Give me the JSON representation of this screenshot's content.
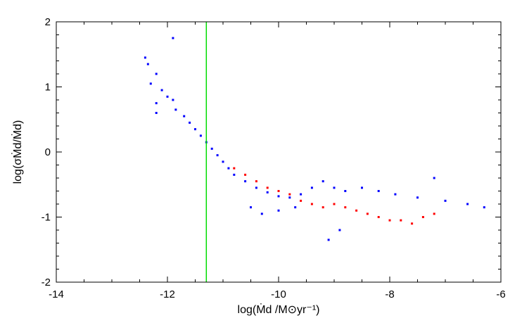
{
  "chart_data": {
    "type": "scatter",
    "title": "",
    "xlabel": "log(Ṁd /M⊙yr⁻¹)",
    "ylabel": "log(σṀd/Ṁd)",
    "xlim": [
      -14,
      -6
    ],
    "ylim": [
      -2,
      2
    ],
    "xticks": [
      "-14",
      "-12",
      "-10",
      "-8",
      "-6"
    ],
    "yticks": [
      "-2",
      "-1",
      "0",
      "1",
      "2"
    ],
    "grid": false,
    "legend": "none",
    "vertical_line": {
      "x": -11.3,
      "color": "#00dd00"
    },
    "series": [
      {
        "color": "#0000ff",
        "points": [
          [
            -12.4,
            1.45
          ],
          [
            -12.35,
            1.35
          ],
          [
            -12.2,
            1.2
          ],
          [
            -12.3,
            1.05
          ],
          [
            -12.1,
            0.95
          ],
          [
            -12.0,
            0.85
          ],
          [
            -11.9,
            0.8
          ],
          [
            -12.2,
            0.75
          ],
          [
            -11.85,
            0.65
          ],
          [
            -11.7,
            0.55
          ],
          [
            -11.6,
            0.45
          ],
          [
            -11.5,
            0.35
          ],
          [
            -11.4,
            0.25
          ],
          [
            -11.3,
            0.15
          ],
          [
            -11.2,
            0.05
          ],
          [
            -11.1,
            -0.05
          ],
          [
            -11.0,
            -0.15
          ],
          [
            -10.9,
            -0.25
          ],
          [
            -10.8,
            -0.35
          ],
          [
            -10.6,
            -0.45
          ],
          [
            -10.4,
            -0.55
          ],
          [
            -10.2,
            -0.62
          ],
          [
            -10.0,
            -0.68
          ],
          [
            -9.8,
            -0.7
          ],
          [
            -9.6,
            -0.65
          ],
          [
            -9.4,
            -0.55
          ],
          [
            -9.2,
            -0.45
          ],
          [
            -9.0,
            -0.55
          ],
          [
            -8.8,
            -0.6
          ],
          [
            -8.5,
            -0.55
          ],
          [
            -8.2,
            -0.6
          ],
          [
            -7.9,
            -0.65
          ],
          [
            -7.5,
            -0.7
          ],
          [
            -7.0,
            -0.75
          ],
          [
            -6.6,
            -0.8
          ],
          [
            -6.3,
            -0.85
          ],
          [
            -10.5,
            -0.85
          ],
          [
            -10.3,
            -0.95
          ],
          [
            -10.0,
            -0.9
          ],
          [
            -9.7,
            -0.85
          ],
          [
            -11.9,
            1.75
          ],
          [
            -12.2,
            0.6
          ],
          [
            -9.1,
            -1.35
          ],
          [
            -8.9,
            -1.2
          ],
          [
            -7.2,
            -0.4
          ]
        ]
      },
      {
        "color": "#ff0000",
        "points": [
          [
            -10.8,
            -0.25
          ],
          [
            -10.6,
            -0.35
          ],
          [
            -10.4,
            -0.45
          ],
          [
            -10.2,
            -0.55
          ],
          [
            -10.0,
            -0.6
          ],
          [
            -9.8,
            -0.65
          ],
          [
            -9.6,
            -0.75
          ],
          [
            -9.4,
            -0.8
          ],
          [
            -9.2,
            -0.85
          ],
          [
            -9.0,
            -0.8
          ],
          [
            -8.8,
            -0.85
          ],
          [
            -8.6,
            -0.9
          ],
          [
            -8.4,
            -0.95
          ],
          [
            -8.2,
            -1.0
          ],
          [
            -8.0,
            -1.05
          ],
          [
            -7.8,
            -1.05
          ],
          [
            -7.6,
            -1.1
          ],
          [
            -7.4,
            -1.0
          ],
          [
            -7.2,
            -0.95
          ]
        ]
      }
    ]
  }
}
